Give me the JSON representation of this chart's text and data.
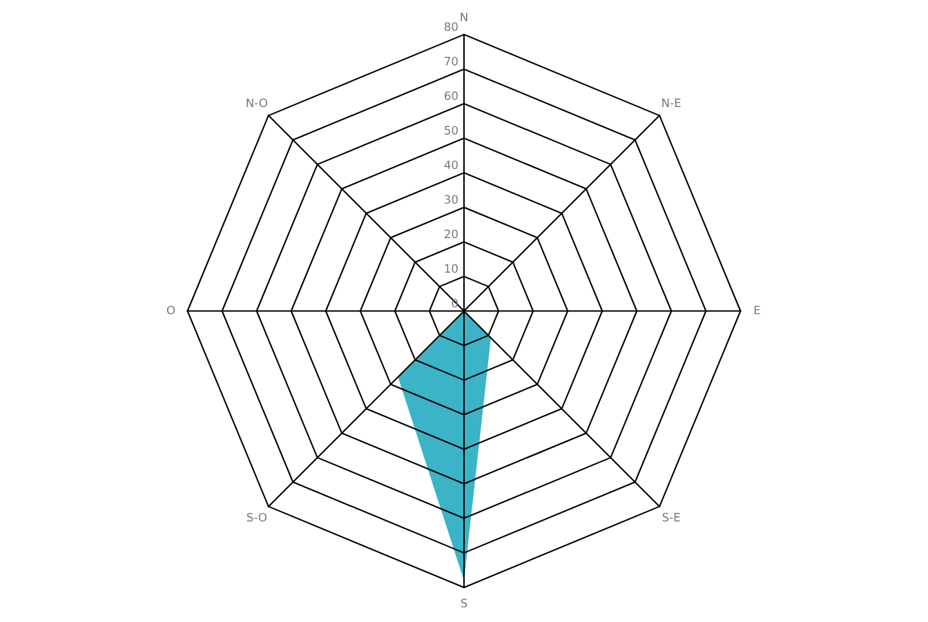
{
  "chart_data": {
    "type": "radar",
    "categories": [
      "N",
      "N-E",
      "E",
      "S-E",
      "S",
      "S-O",
      "O",
      "N-O"
    ],
    "series": [
      {
        "color": "#3ab4c6",
        "values": [
          0,
          0,
          0,
          11,
          78,
          27,
          0,
          0
        ]
      }
    ],
    "ylim": [
      0,
      80
    ],
    "yticks": [
      0,
      10,
      20,
      30,
      40,
      50,
      60,
      70,
      80
    ],
    "grid": true
  }
}
